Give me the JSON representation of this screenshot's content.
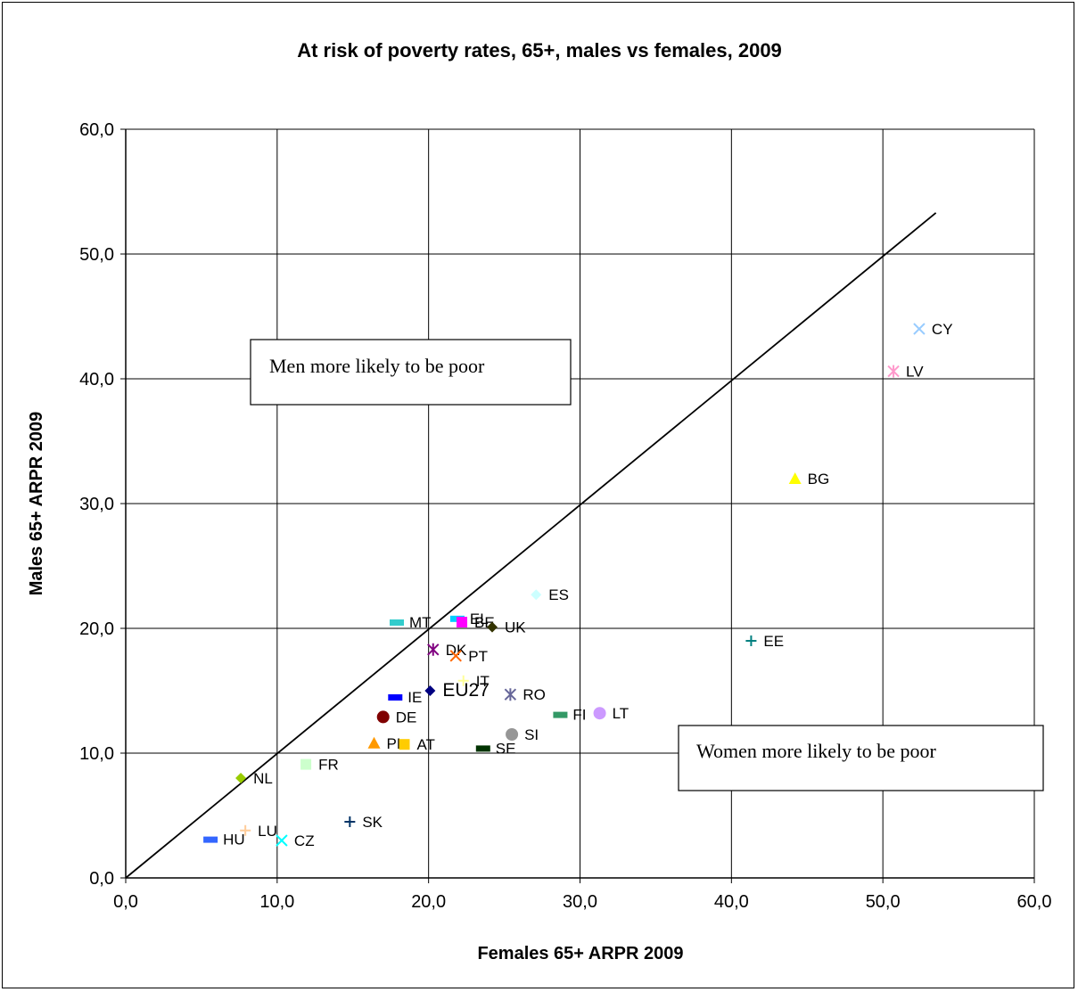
{
  "chart_data": {
    "type": "scatter",
    "title": "At risk of poverty rates, 65+, males vs females, 2009",
    "xlabel": "Females 65+ ARPR 2009",
    "ylabel": "Males 65+ ARPR 2009",
    "xlim": [
      0,
      60
    ],
    "ylim": [
      0,
      60
    ],
    "xticks": [
      "0,0",
      "10,0",
      "20,0",
      "30,0",
      "40,0",
      "50,0",
      "60,0"
    ],
    "yticks": [
      "0,0",
      "10,0",
      "20,0",
      "30,0",
      "40,0",
      "50,0",
      "60,0"
    ],
    "grid": true,
    "reference_line": {
      "x": [
        0,
        53.5
      ],
      "y": [
        0,
        53.3
      ]
    },
    "annotations": [
      "Men more likely to be poor",
      "Women more likely to be poor"
    ],
    "points": [
      {
        "label": "CY",
        "x": 52.4,
        "y": 44.0,
        "marker": "x",
        "color": "#99ccff"
      },
      {
        "label": "LV",
        "x": 50.7,
        "y": 40.6,
        "marker": "asterisk",
        "color": "#ff99cc"
      },
      {
        "label": "BG",
        "x": 44.2,
        "y": 32.0,
        "marker": "triangle",
        "color": "#ffff00"
      },
      {
        "label": "ES",
        "x": 27.1,
        "y": 22.7,
        "marker": "diamond",
        "color": "#ccffff"
      },
      {
        "label": "EE",
        "x": 41.3,
        "y": 19.0,
        "marker": "plus",
        "color": "#008080"
      },
      {
        "label": "MT",
        "x": 17.9,
        "y": 20.5,
        "marker": "dash",
        "color": "#33cccc"
      },
      {
        "label": "EL",
        "x": 21.9,
        "y": 20.8,
        "marker": "dash",
        "color": "#00ccff"
      },
      {
        "label": "BE",
        "x": 22.2,
        "y": 20.5,
        "marker": "square",
        "color": "#ff00ff"
      },
      {
        "label": "UK",
        "x": 24.2,
        "y": 20.1,
        "marker": "diamond",
        "color": "#333300"
      },
      {
        "label": "DK",
        "x": 20.3,
        "y": 18.3,
        "marker": "asterisk",
        "color": "#800080"
      },
      {
        "label": "PT",
        "x": 21.8,
        "y": 17.8,
        "marker": "x",
        "color": "#ff6600"
      },
      {
        "label": "IT",
        "x": 22.3,
        "y": 15.8,
        "marker": "plus",
        "color": "#ffff99"
      },
      {
        "label": "RO",
        "x": 25.4,
        "y": 14.7,
        "marker": "asterisk",
        "color": "#666699"
      },
      {
        "label": "IE",
        "x": 17.8,
        "y": 14.5,
        "marker": "dash",
        "color": "#0000ff"
      },
      {
        "label": "EU27",
        "x": 20.1,
        "y": 15.0,
        "marker": "diamond",
        "color": "#000080"
      },
      {
        "label": "FI",
        "x": 28.7,
        "y": 13.1,
        "marker": "dash",
        "color": "#339966"
      },
      {
        "label": "LT",
        "x": 31.3,
        "y": 13.2,
        "marker": "circle",
        "color": "#cc99ff"
      },
      {
        "label": "DE",
        "x": 17.0,
        "y": 12.9,
        "marker": "circle",
        "color": "#800000"
      },
      {
        "label": "SI",
        "x": 25.5,
        "y": 11.5,
        "marker": "circle",
        "color": "#969696"
      },
      {
        "label": "PL",
        "x": 16.4,
        "y": 10.8,
        "marker": "triangle",
        "color": "#ff9900"
      },
      {
        "label": "AT",
        "x": 18.4,
        "y": 10.7,
        "marker": "square",
        "color": "#ffcc00"
      },
      {
        "label": "SE",
        "x": 23.6,
        "y": 10.4,
        "marker": "dash",
        "color": "#003300"
      },
      {
        "label": "FR",
        "x": 11.9,
        "y": 9.1,
        "marker": "square",
        "color": "#ccffcc"
      },
      {
        "label": "NL",
        "x": 7.6,
        "y": 8.0,
        "marker": "diamond",
        "color": "#99cc00"
      },
      {
        "label": "SK",
        "x": 14.8,
        "y": 4.5,
        "marker": "plus",
        "color": "#003366"
      },
      {
        "label": "LU",
        "x": 7.9,
        "y": 3.8,
        "marker": "plus",
        "color": "#ffcc99"
      },
      {
        "label": "HU",
        "x": 5.6,
        "y": 3.1,
        "marker": "dash",
        "color": "#3366ff"
      },
      {
        "label": "CZ",
        "x": 10.3,
        "y": 3.0,
        "marker": "x",
        "color": "#00ffff"
      }
    ]
  }
}
